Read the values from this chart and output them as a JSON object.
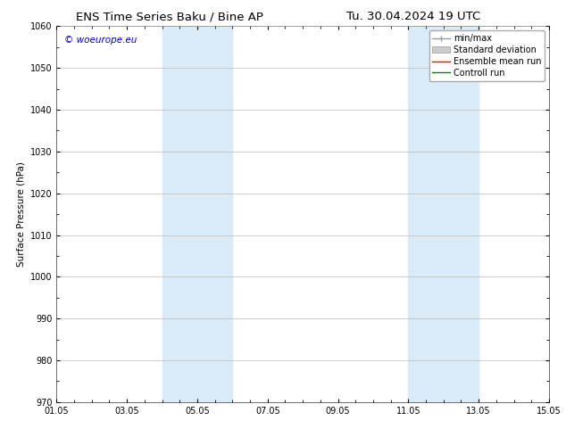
{
  "title_left": "ENS Time Series Baku / Bine AP",
  "title_right": "Tu. 30.04.2024 19 UTC",
  "ylabel": "Surface Pressure (hPa)",
  "ylim": [
    970,
    1060
  ],
  "yticks": [
    970,
    980,
    990,
    1000,
    1010,
    1020,
    1030,
    1040,
    1050,
    1060
  ],
  "xlim_start": 0,
  "xlim_end": 14,
  "xtick_labels": [
    "01.05",
    "03.05",
    "05.05",
    "07.05",
    "09.05",
    "11.05",
    "13.05",
    "15.05"
  ],
  "xtick_positions": [
    0,
    2,
    4,
    6,
    8,
    10,
    12,
    14
  ],
  "shade_regions": [
    {
      "xstart": 3.0,
      "xend": 5.0
    },
    {
      "xstart": 10.0,
      "xend": 12.0
    }
  ],
  "shade_color": "#daeaf7",
  "watermark_text": "© woeurope.eu",
  "watermark_color": "#0000cc",
  "bg_color": "#ffffff",
  "grid_color": "#bbbbbb",
  "title_fontsize": 9.5,
  "axis_label_fontsize": 7.5,
  "tick_fontsize": 7,
  "legend_fontsize": 7,
  "watermark_fontsize": 7.5
}
